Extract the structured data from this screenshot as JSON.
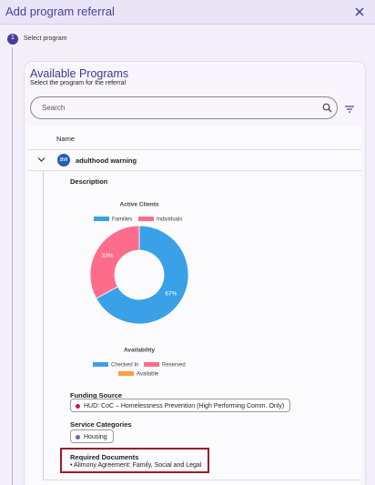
{
  "header": {
    "title": "Add program referral"
  },
  "stepper": {
    "number": "1",
    "label": "Select program"
  },
  "panel": {
    "title": "Available Programs",
    "subtitle": "Select the program for the referral",
    "search_placeholder": "Search",
    "column": "Name"
  },
  "program": {
    "avatar": "aw",
    "name": "adulthood warning",
    "description_label": "Description",
    "funding_label": "Funding Source",
    "funding": "HUD: CoC – Homelessness Prevention (High Performing Comm. Only)",
    "categories_label": "Service Categories",
    "category": "Housing",
    "documents_label": "Required Documents",
    "document": "• Alimony Agreement: Family, Social and Legal"
  },
  "chart_data": {
    "type": "pie",
    "title": "Active Clients",
    "categories": [
      "Families",
      "Individuals"
    ],
    "values": [
      67,
      33
    ],
    "value_labels": [
      "67%",
      "33%"
    ],
    "colors": [
      "#3aa0e8",
      "#fd6d8b"
    ]
  },
  "availability": {
    "title": "Availability",
    "legend": [
      {
        "name": "Checked In",
        "color": "#3aa0e8"
      },
      {
        "name": "Reserved",
        "color": "#fd6d8b"
      },
      {
        "name": "Available",
        "color": "#f9a13a"
      }
    ]
  }
}
